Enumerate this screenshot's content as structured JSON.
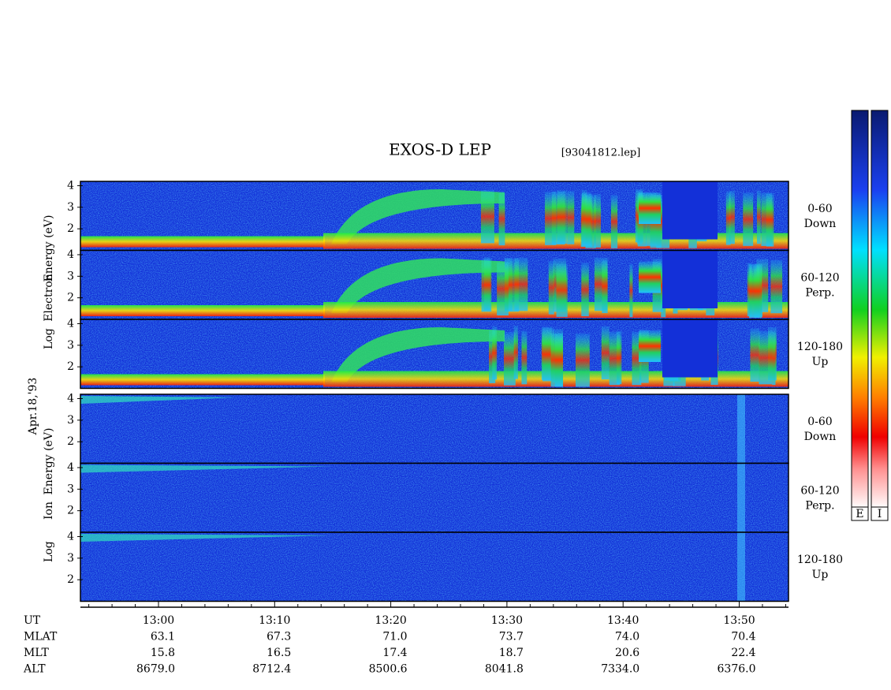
{
  "header": {
    "title": "EXOS-D LEP",
    "file": "[93041812.lep]"
  },
  "date": "Apr.18,'93",
  "groups": [
    {
      "ylabel": [
        "Log",
        "Electron",
        "Energy (eV)"
      ],
      "panels": [
        {
          "label": [
            "0-60",
            "Down"
          ],
          "yticks": [
            4,
            3,
            2
          ]
        },
        {
          "label": [
            "60-120",
            "Perp."
          ],
          "yticks": [
            4,
            3,
            2
          ]
        },
        {
          "label": [
            "120-180",
            "Up"
          ],
          "yticks": [
            4,
            3,
            2
          ]
        }
      ]
    },
    {
      "ylabel": [
        "Log",
        "Ion",
        "Energy (eV)"
      ],
      "panels": [
        {
          "label": [
            "0-60",
            "Down"
          ],
          "yticks": [
            4,
            3,
            2
          ]
        },
        {
          "label": [
            "60-120",
            "Perp."
          ],
          "yticks": [
            4,
            3,
            2
          ]
        },
        {
          "label": [
            "120-180",
            "Up"
          ],
          "yticks": [
            4,
            3,
            2
          ]
        }
      ]
    }
  ],
  "ylim": [
    1,
    4.2
  ],
  "footer": {
    "rows": [
      {
        "name": "UT",
        "values": [
          "13:00",
          "13:10",
          "13:20",
          "13:30",
          "13:40",
          "13:50"
        ]
      },
      {
        "name": "MLAT",
        "values": [
          "63.1",
          "67.3",
          "71.0",
          "73.7",
          "74.0",
          "70.4"
        ]
      },
      {
        "name": "MLT",
        "values": [
          "15.8",
          "16.5",
          "17.4",
          "18.7",
          "20.6",
          "22.4"
        ]
      },
      {
        "name": "ALT",
        "values": [
          "8679.0",
          "8712.4",
          "8500.6",
          "8041.8",
          "7334.0",
          "6376.0"
        ]
      }
    ]
  },
  "colorbars": [
    "E",
    "I"
  ]
}
